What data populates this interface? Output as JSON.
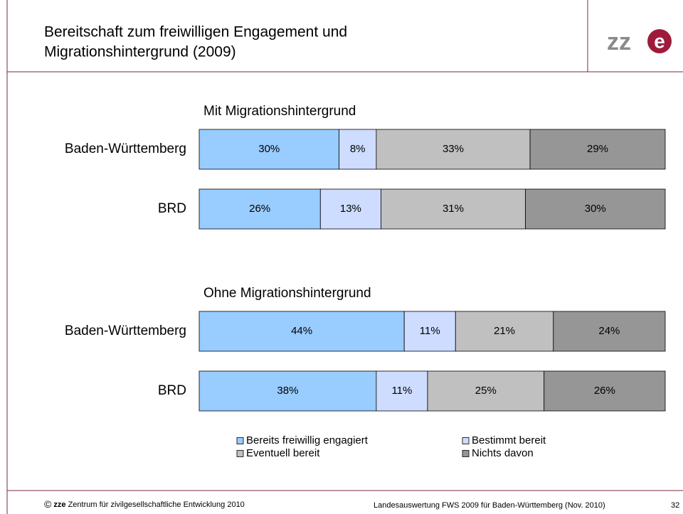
{
  "header": {
    "title_lines": [
      "Bereitschaft zum freiwilligen Engagement und",
      "Migrationshintergrund (2009)"
    ],
    "logo": [
      "zz",
      "e"
    ]
  },
  "chart_data": {
    "type": "bar",
    "orientation": "horizontal",
    "stacked": true,
    "xlim": [
      0,
      100
    ],
    "series": [
      {
        "name": "Bereits freiwillig engagiert",
        "color": "#99ccff"
      },
      {
        "name": "Bestimmt bereit",
        "color": "#cddcff"
      },
      {
        "name": "Eventuell bereit",
        "color": "#c0c0c0"
      },
      {
        "name": "Nichts davon",
        "color": "#969696"
      }
    ],
    "groups": [
      {
        "title": "Mit Migrationshintergrund",
        "categories": [
          "Baden-Württemberg",
          "BRD"
        ],
        "values": [
          [
            30,
            8,
            33,
            29
          ],
          [
            26,
            13,
            31,
            30
          ]
        ],
        "value_labels": [
          [
            "30%",
            "8%",
            "33%",
            "29%"
          ],
          [
            "26%",
            "13%",
            "31%",
            "30%"
          ]
        ]
      },
      {
        "title": "Ohne Migrationshintergrund",
        "categories": [
          "Baden-Württemberg",
          "BRD"
        ],
        "values": [
          [
            44,
            11,
            21,
            24
          ],
          [
            38,
            11,
            25,
            26
          ]
        ],
        "value_labels": [
          [
            "44%",
            "11%",
            "21%",
            "24%"
          ],
          [
            "38%",
            "11%",
            "25%",
            "26%"
          ]
        ]
      }
    ]
  },
  "footer": {
    "left": [
      "©",
      "zze",
      "Zentrum für zivilgesellschaftliche Entwicklung 2010"
    ],
    "middle": "Landesauswertung FWS 2009 für Baden-Württemberg (Nov. 2010)",
    "page": "32"
  }
}
